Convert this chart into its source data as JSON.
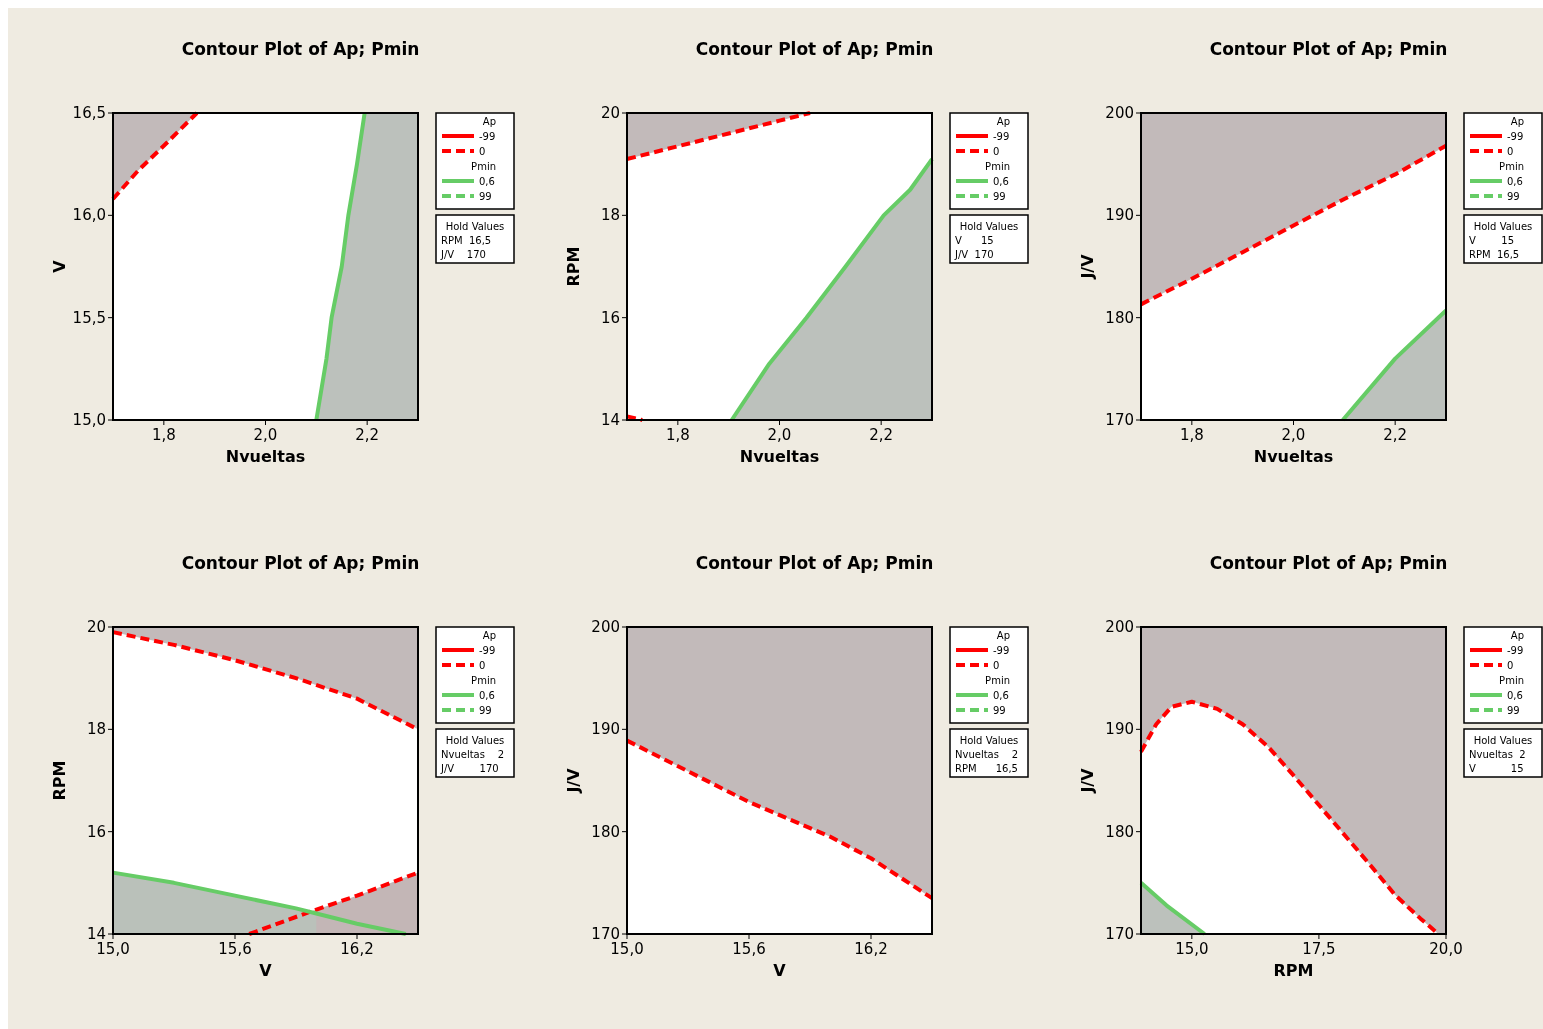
{
  "chart_data": [
    {
      "type": "line",
      "title": "Contour Plot of Ap; Pmin",
      "xlabel": "Nvueltas",
      "ylabel": "V",
      "xlim": [
        1.7,
        2.3
      ],
      "xticks": [
        {
          "value": 1.8,
          "label": "1,8"
        },
        {
          "value": 2.0,
          "label": "2,0"
        },
        {
          "value": 2.2,
          "label": "2,2"
        }
      ],
      "ylim": [
        15,
        16.5
      ],
      "yticks": [
        {
          "value": 15,
          "label": "15,0"
        },
        {
          "value": 15.5,
          "label": "15,5"
        },
        {
          "value": 16,
          "label": "16,0"
        },
        {
          "value": 16.5,
          "label": "16,5"
        }
      ],
      "legend": "right",
      "legend_title": [
        "Ap",
        "Pmin"
      ],
      "annotations": [
        "Hold Values",
        "RPM  16,5",
        "J/V    170"
      ],
      "series": [
        {
          "name": "-99",
          "color": "#ff0000",
          "line_style": "solid"
        },
        {
          "name": "0",
          "color": "#ff0000",
          "line_style": "dashed",
          "x": [
            1.7,
            1.75,
            1.8,
            1.865
          ],
          "values": [
            16.08,
            16.22,
            16.34,
            16.5
          ],
          "lower": [
            16.08,
            16.22,
            16.34,
            16.5
          ],
          "upper": [
            16.5,
            16.5,
            16.5,
            16.5
          ]
        },
        {
          "name": "0,6",
          "color": "#66cc66",
          "line_style": "solid",
          "x": [
            2.1,
            2.12,
            2.13,
            2.15,
            2.163,
            2.18,
            2.195,
            2.3
          ],
          "values": [
            15,
            15.3,
            15.5,
            15.75,
            16,
            16.25,
            16.5,
            null
          ],
          "lower": [
            15,
            15,
            15,
            15,
            15,
            15,
            15,
            15
          ],
          "upper": [
            15,
            15.3,
            15.5,
            15.75,
            16,
            16.25,
            16.5,
            16.5
          ]
        },
        {
          "name": "99",
          "color": "#66cc66",
          "line_style": "dashed"
        }
      ]
    },
    {
      "type": "line",
      "title": "Contour Plot of Ap; Pmin",
      "xlabel": "Nvueltas",
      "ylabel": "RPM",
      "xlim": [
        1.7,
        2.3
      ],
      "xticks": [
        {
          "value": 1.8,
          "label": "1,8"
        },
        {
          "value": 2.0,
          "label": "2,0"
        },
        {
          "value": 2.2,
          "label": "2,2"
        }
      ],
      "ylim": [
        14,
        20
      ],
      "yticks": [
        14,
        16,
        18,
        20
      ],
      "legend": "right",
      "legend_title": [
        "Ap",
        "Pmin"
      ],
      "annotations": [
        "Hold Values",
        "V      15",
        "J/V  170"
      ],
      "series": [
        {
          "name": "-99",
          "color": "#ff0000",
          "line_style": "solid"
        },
        {
          "name": "0",
          "color": "#ff0000",
          "line_style": "dashed",
          "x": [
            1.7,
            1.8,
            1.9,
            2.0,
            2.06
          ],
          "values": [
            19.1,
            19.35,
            19.6,
            19.85,
            20
          ],
          "lower": [
            19.1,
            19.35,
            19.6,
            19.85,
            20
          ],
          "upper": [
            20,
            20,
            20,
            20,
            20
          ]
        },
        {
          "color": "#ff0000",
          "line_style": "dashed",
          "x": [
            1.7,
            1.73
          ],
          "values": [
            14.07,
            14
          ]
        },
        {
          "name": "0,6",
          "color": "#66cc66",
          "line_style": "solid",
          "x": [
            1.906,
            1.98,
            2.053,
            2.13,
            2.205,
            2.257,
            2.3
          ],
          "values": [
            14,
            15.1,
            16,
            17,
            18,
            18.5,
            19.1
          ],
          "lower": [
            14,
            14,
            14,
            14,
            14,
            14,
            14
          ],
          "upper": [
            14,
            15.1,
            16,
            17,
            18,
            18.5,
            19.1
          ]
        },
        {
          "name": "99",
          "color": "#66cc66",
          "line_style": "dashed"
        }
      ]
    },
    {
      "type": "line",
      "title": "Contour Plot of Ap; Pmin",
      "xlabel": "Nvueltas",
      "ylabel": "J/V",
      "xlim": [
        1.7,
        2.3
      ],
      "xticks": [
        {
          "value": 1.8,
          "label": "1,8"
        },
        {
          "value": 2.0,
          "label": "2,0"
        },
        {
          "value": 2.2,
          "label": "2,2"
        }
      ],
      "ylim": [
        170,
        200
      ],
      "yticks": [
        170,
        180,
        190,
        200
      ],
      "legend": "right",
      "legend_title": [
        "Ap",
        "Pmin"
      ],
      "annotations": [
        "Hold Values",
        "V        15",
        "RPM  16,5"
      ],
      "series": [
        {
          "name": "-99",
          "color": "#ff0000",
          "line_style": "solid"
        },
        {
          "name": "0",
          "color": "#ff0000",
          "line_style": "dashed",
          "x": [
            1.7,
            1.8,
            1.9,
            2.0,
            2.1,
            2.2,
            2.3
          ],
          "values": [
            181.3,
            183.8,
            186.4,
            189,
            191.6,
            194,
            196.8
          ],
          "lower": [
            181.3,
            183.8,
            186.4,
            189,
            191.6,
            194,
            196.8
          ],
          "upper": [
            200,
            200,
            200,
            200,
            200,
            200,
            200
          ]
        },
        {
          "name": "0,6",
          "color": "#66cc66",
          "line_style": "solid",
          "x": [
            2.097,
            2.2,
            2.3
          ],
          "values": [
            170,
            176,
            180.7
          ],
          "lower": [
            170,
            170,
            170
          ],
          "upper": [
            170,
            176,
            180.7
          ]
        },
        {
          "name": "99",
          "color": "#66cc66",
          "line_style": "dashed"
        }
      ]
    },
    {
      "type": "line",
      "title": "Contour Plot of Ap; Pmin",
      "xlabel": "V",
      "ylabel": "RPM",
      "xlim": [
        15,
        16.5
      ],
      "xticks": [
        {
          "value": 15,
          "label": "15,0"
        },
        {
          "value": 15.6,
          "label": "15,6"
        },
        {
          "value": 16.2,
          "label": "16,2"
        }
      ],
      "ylim": [
        14,
        20
      ],
      "yticks": [
        14,
        16,
        18,
        20
      ],
      "legend": "right",
      "legend_title": [
        "Ap",
        "Pmin"
      ],
      "annotations": [
        "Hold Values",
        "Nvueltas    2",
        "J/V        170"
      ],
      "series": [
        {
          "name": "-99",
          "color": "#ff0000",
          "line_style": "solid"
        },
        {
          "name": "0",
          "color": "#ff0000",
          "line_style": "dashed",
          "x": [
            15,
            15.3,
            15.6,
            15.9,
            16.2,
            16.5
          ],
          "values": [
            19.9,
            19.65,
            19.35,
            19,
            18.6,
            18
          ],
          "lower": [
            19.9,
            19.65,
            19.35,
            19,
            18.6,
            18
          ],
          "upper": [
            20,
            20,
            20,
            20,
            20,
            20
          ]
        },
        {
          "color": "#ff0000",
          "line_style": "dashed",
          "x": [
            15.67,
            15.98,
            16.2,
            16.5
          ],
          "values": [
            14,
            14.45,
            14.75,
            15.2
          ],
          "lower": [
            null,
            14,
            14,
            14
          ],
          "upper": [
            null,
            14.45,
            14.75,
            15.2
          ]
        },
        {
          "name": "0,6",
          "color": "#66cc66",
          "line_style": "solid",
          "x": [
            15,
            15.3,
            15.6,
            15.9,
            16,
            16.2,
            16.44
          ],
          "values": [
            15.2,
            15,
            14.75,
            14.5,
            14.4,
            14.2,
            14
          ],
          "lower": [
            14,
            14,
            14,
            14,
            14,
            null,
            null
          ],
          "upper": [
            15.2,
            15,
            14.75,
            14.5,
            14.4,
            null,
            null
          ]
        },
        {
          "name": "99",
          "color": "#66cc66",
          "line_style": "dashed"
        }
      ]
    },
    {
      "type": "line",
      "title": "Contour Plot of Ap; Pmin",
      "xlabel": "V",
      "ylabel": "J/V",
      "xlim": [
        15,
        16.5
      ],
      "xticks": [
        {
          "value": 15,
          "label": "15,0"
        },
        {
          "value": 15.6,
          "label": "15,6"
        },
        {
          "value": 16.2,
          "label": "16,2"
        }
      ],
      "ylim": [
        170,
        200
      ],
      "yticks": [
        170,
        180,
        190,
        200
      ],
      "legend": "right",
      "legend_title": [
        "Ap",
        "Pmin"
      ],
      "annotations": [
        "Hold Values",
        "Nvueltas    2",
        "RPM      16,5"
      ],
      "series": [
        {
          "name": "-99",
          "color": "#ff0000",
          "line_style": "solid"
        },
        {
          "name": "0",
          "color": "#ff0000",
          "line_style": "dashed",
          "x": [
            15,
            15.6,
            16,
            16.2,
            16.5
          ],
          "values": [
            188.9,
            182.9,
            179.5,
            177.4,
            173.5
          ],
          "lower": [
            188.9,
            182.9,
            179.5,
            177.4,
            173.5
          ],
          "upper": [
            200,
            200,
            200,
            200,
            200
          ]
        },
        {
          "name": "0,6",
          "color": "#66cc66",
          "line_style": "solid"
        },
        {
          "name": "99",
          "color": "#66cc66",
          "line_style": "dashed"
        }
      ]
    },
    {
      "type": "line",
      "title": "Contour Plot of Ap; Pmin",
      "xlabel": "RPM",
      "ylabel": "J/V",
      "xlim": [
        14,
        20
      ],
      "xticks": [
        {
          "value": 15,
          "label": "15,0"
        },
        {
          "value": 17.5,
          "label": "17,5"
        },
        {
          "value": 20,
          "label": "20,0"
        }
      ],
      "ylim": [
        170,
        200
      ],
      "yticks": [
        170,
        180,
        190,
        200
      ],
      "legend": "right",
      "legend_title": [
        "Ap",
        "Pmin"
      ],
      "annotations": [
        "Hold Values",
        "Nvueltas  2",
        "V           15"
      ],
      "series": [
        {
          "name": "-99",
          "color": "#ff0000",
          "line_style": "solid"
        },
        {
          "name": "0",
          "color": "#ff0000",
          "line_style": "dashed",
          "x": [
            14,
            14.3,
            14.6,
            15,
            15.5,
            16,
            16.5,
            17,
            17.5,
            18,
            18.5,
            19,
            19.5,
            19.85,
            20
          ],
          "values": [
            187.8,
            190.5,
            192.2,
            192.7,
            192,
            190.5,
            188.3,
            185.5,
            182.6,
            179.7,
            176.8,
            173.8,
            171.5,
            170,
            null
          ],
          "lower": [
            187.8,
            190.5,
            192.2,
            192.7,
            192,
            190.5,
            188.3,
            185.5,
            182.6,
            179.7,
            176.8,
            173.8,
            171.5,
            170,
            170
          ],
          "upper": [
            200,
            200,
            200,
            200,
            200,
            200,
            200,
            200,
            200,
            200,
            200,
            200,
            200,
            200,
            200
          ]
        },
        {
          "name": "0,6",
          "color": "#66cc66",
          "line_style": "solid",
          "x": [
            14,
            14.5,
            15.25
          ],
          "values": [
            175,
            172.8,
            170
          ],
          "lower": [
            170,
            170,
            170
          ],
          "upper": [
            175,
            172.8,
            170
          ]
        },
        {
          "name": "99",
          "color": "#66cc66",
          "line_style": "dashed"
        }
      ]
    }
  ]
}
